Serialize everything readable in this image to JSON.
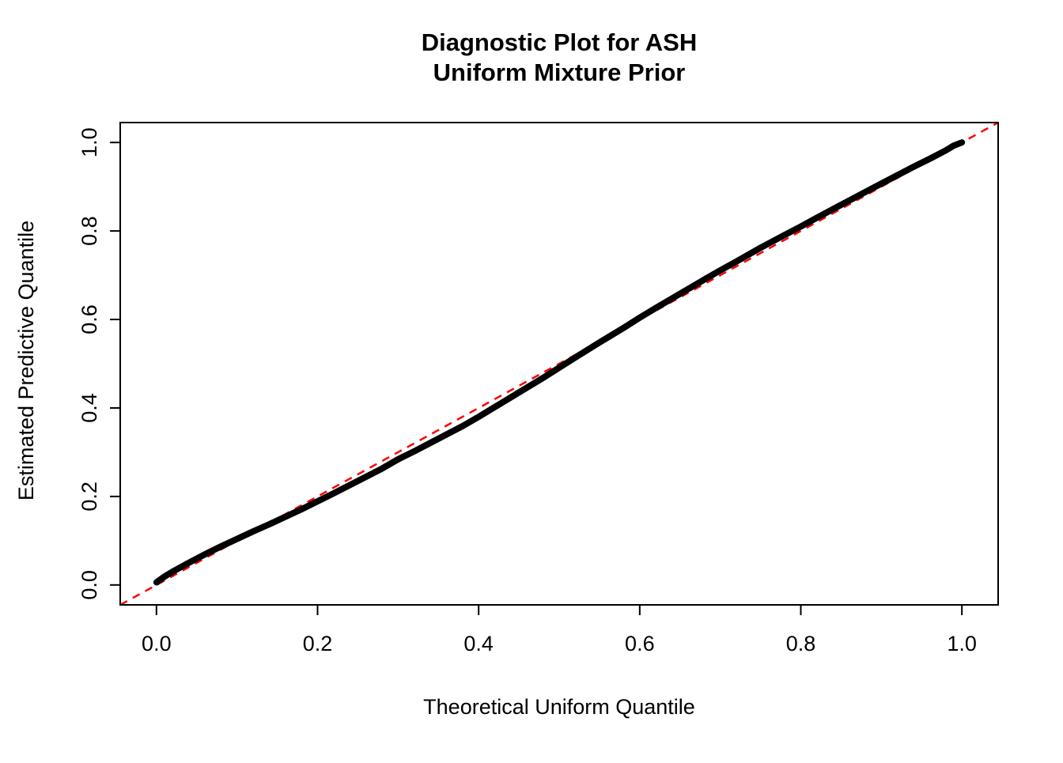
{
  "title": {
    "line1": "Diagnostic Plot for ASH",
    "line2": "Uniform Mixture Prior"
  },
  "axes": {
    "xlabel": "Theoretical Uniform Quantile",
    "ylabel": "Estimated Predictive Quantile",
    "x_tick_labels": [
      "0.0",
      "0.2",
      "0.4",
      "0.6",
      "0.8",
      "1.0"
    ],
    "y_tick_labels": [
      "0.0",
      "0.2",
      "0.4",
      "0.6",
      "0.8",
      "1.0"
    ],
    "x_tick_values": [
      0.0,
      0.2,
      0.4,
      0.6,
      0.8,
      1.0
    ],
    "y_tick_values": [
      0.0,
      0.2,
      0.4,
      0.6,
      0.8,
      1.0
    ]
  },
  "colors": {
    "points": "#000000",
    "reference_line": "#FF0000",
    "box": "#000000",
    "background": "#FFFFFF"
  },
  "chart_data": {
    "type": "scatter",
    "title": "Diagnostic Plot for ASH\nUniform Mixture Prior",
    "xlabel": "Theoretical Uniform Quantile",
    "ylabel": "Estimated Predictive Quantile",
    "xlim": [
      -0.045,
      1.045
    ],
    "ylim": [
      -0.045,
      1.045
    ],
    "grid": false,
    "legend": "none",
    "x": [
      0.0,
      0.01,
      0.02,
      0.04,
      0.06,
      0.08,
      0.1,
      0.12,
      0.14,
      0.16,
      0.18,
      0.2,
      0.22,
      0.25,
      0.28,
      0.3,
      0.32,
      0.34,
      0.36,
      0.38,
      0.4,
      0.42,
      0.44,
      0.46,
      0.48,
      0.5,
      0.52,
      0.55,
      0.58,
      0.6,
      0.62,
      0.65,
      0.68,
      0.7,
      0.72,
      0.75,
      0.78,
      0.8,
      0.82,
      0.85,
      0.88,
      0.9,
      0.92,
      0.94,
      0.96,
      0.98,
      0.99,
      1.0
    ],
    "y": [
      0.006,
      0.019,
      0.03,
      0.05,
      0.069,
      0.087,
      0.104,
      0.121,
      0.137,
      0.154,
      0.171,
      0.189,
      0.207,
      0.235,
      0.263,
      0.284,
      0.302,
      0.321,
      0.34,
      0.359,
      0.38,
      0.402,
      0.424,
      0.446,
      0.468,
      0.491,
      0.514,
      0.548,
      0.581,
      0.604,
      0.626,
      0.658,
      0.69,
      0.711,
      0.731,
      0.762,
      0.791,
      0.81,
      0.83,
      0.859,
      0.888,
      0.907,
      0.926,
      0.945,
      0.963,
      0.982,
      0.993,
      1.0
    ],
    "reference_line": {
      "type": "abline",
      "intercept": 0,
      "slope": 1,
      "color": "#FF0000",
      "style": "dashed"
    }
  }
}
